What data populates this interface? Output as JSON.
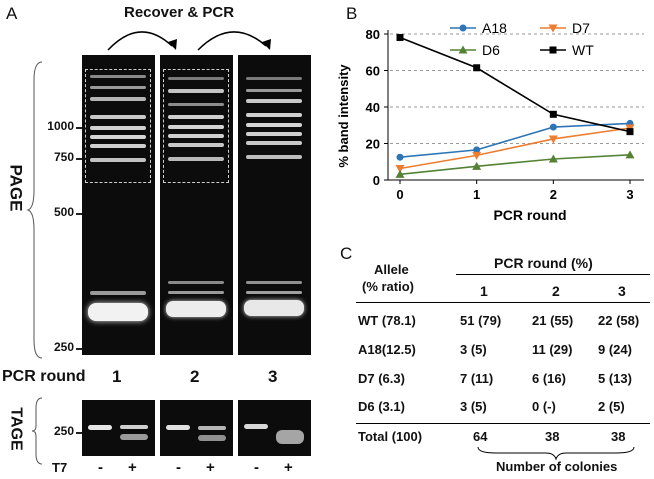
{
  "panel_a": {
    "letter": "A",
    "recover_label": "Recover & PCR",
    "page_label": "PAGE",
    "tage_label": "TAGE",
    "markers": [
      "1000",
      "750",
      "500",
      "250"
    ],
    "pcr_round_label": "PCR round",
    "lanes": [
      "1",
      "2",
      "3"
    ],
    "tage_marker": "250",
    "t7_label": "T7",
    "t7_signs": [
      "-",
      "+",
      "-",
      "+",
      "-",
      "+"
    ]
  },
  "panel_b": {
    "letter": "B",
    "colors": {
      "A18": "#2e75b6",
      "D7": "#ed7d31",
      "D6": "#548235",
      "WT": "#000000"
    }
  },
  "chart_data": {
    "type": "line",
    "x": [
      0,
      1,
      2,
      3
    ],
    "xlabel": "PCR round",
    "ylabel": "% band intensity",
    "ylim": [
      0,
      80
    ],
    "yticks": [
      0,
      20,
      40,
      60,
      80
    ],
    "grid": true,
    "legend": "top",
    "series": [
      {
        "name": "A18",
        "values": [
          12.5,
          16.5,
          29,
          31
        ],
        "marker": "circle"
      },
      {
        "name": "D7",
        "values": [
          6.3,
          13.5,
          22.5,
          28.5
        ],
        "marker": "triangle-down"
      },
      {
        "name": "D6",
        "values": [
          3.1,
          7.5,
          11.5,
          13.8
        ],
        "marker": "triangle-up"
      },
      {
        "name": "WT",
        "values": [
          78.1,
          61.5,
          36,
          26.5
        ],
        "marker": "square"
      }
    ]
  },
  "panel_c": {
    "letter": "C",
    "allele_header": "Allele",
    "ratio_header": "(% ratio)",
    "pcr_header": "PCR round (%)",
    "round_headers": [
      "1",
      "2",
      "3"
    ],
    "rows": [
      {
        "allele": "WT (78.1)",
        "r1": "51 (79)",
        "r2": "21 (55)",
        "r3": "22 (58)"
      },
      {
        "allele": "A18(12.5)",
        "r1": "3 (5)",
        "r2": "11 (29)",
        "r3": "9 (24)"
      },
      {
        "allele": "D7 (6.3)",
        "r1": "7 (11)",
        "r2": "6 (16)",
        "r3": "5 (13)"
      },
      {
        "allele": "D6 (3.1)",
        "r1": "3 (5)",
        "r2": "0 (-)",
        "r3": "2 (5)"
      }
    ],
    "total": {
      "allele": "Total (100)",
      "r1": "64",
      "r2": "38",
      "r3": "38"
    },
    "colonies_label": "Number of colonies"
  }
}
